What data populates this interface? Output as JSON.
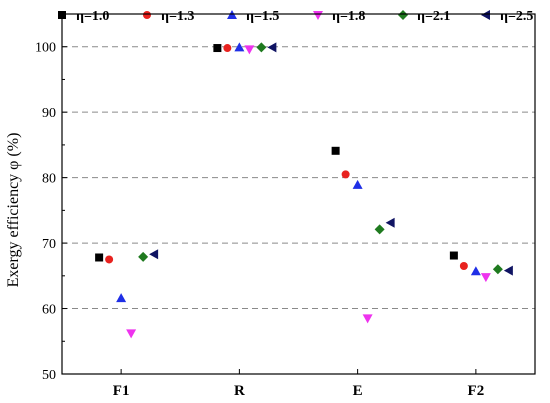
{
  "chart_data": {
    "type": "scatter",
    "title": "",
    "xlabel": "",
    "ylabel": "Exergy efficiency φ (%)",
    "categories": [
      "F1",
      "R",
      "E",
      "F2"
    ],
    "ylim": [
      50,
      105
    ],
    "yticks": [
      50,
      60,
      70,
      80,
      90,
      100
    ],
    "grid": "horizontal dashed at 60, 70, 80, 90, 100",
    "legend_position": "top",
    "series": [
      {
        "name": "η=1.0",
        "marker": "square",
        "color": "#000000",
        "values": [
          67.8,
          99.8,
          84.1,
          68.1
        ]
      },
      {
        "name": "η=1.3",
        "marker": "circle",
        "color": "#e8221f",
        "values": [
          67.5,
          99.8,
          80.5,
          66.5
        ]
      },
      {
        "name": "η=1.5",
        "marker": "triangle-up",
        "color": "#1f2fe6",
        "values": [
          61.6,
          99.9,
          78.9,
          65.7
        ]
      },
      {
        "name": "η=1.8",
        "marker": "triangle-down",
        "color": "#ee33ee",
        "values": [
          56.2,
          99.6,
          58.5,
          64.8
        ]
      },
      {
        "name": "η=2.1",
        "marker": "diamond",
        "color": "#1f7a1f",
        "values": [
          67.9,
          99.9,
          72.1,
          66.0
        ]
      },
      {
        "name": "η=2.5",
        "marker": "triangle-left",
        "color": "#101463",
        "values": [
          68.3,
          99.9,
          73.1,
          65.8
        ]
      }
    ]
  }
}
